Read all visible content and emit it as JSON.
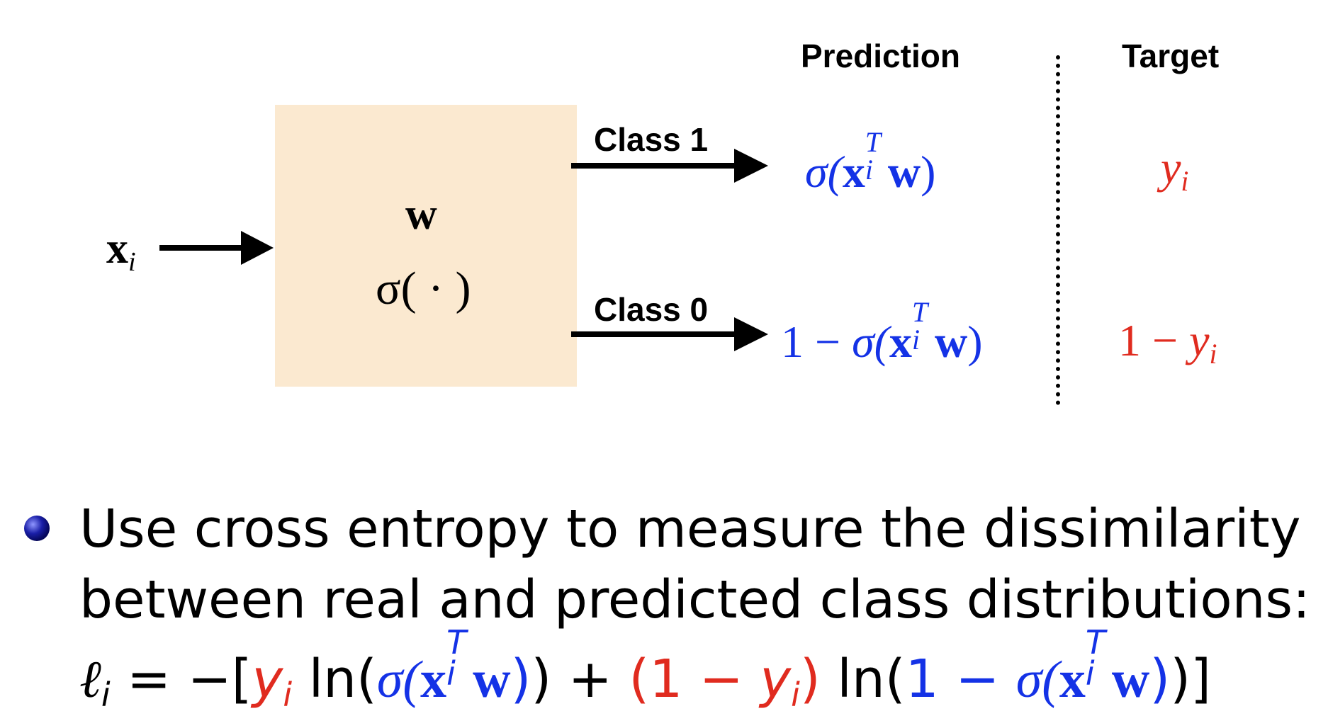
{
  "headers": {
    "prediction": "Prediction",
    "target": "Target"
  },
  "model": {
    "input_bold": "x",
    "input_sub": "i",
    "weights": "w",
    "activation": "σ( · )"
  },
  "branches": {
    "class1_label": "Class 1",
    "class0_label": "Class 0"
  },
  "predictions": {
    "class1": {
      "sigma": "σ(",
      "x": "x",
      "sub": "i",
      "sup": "T",
      "w": "w",
      "close": ")"
    },
    "class0": {
      "prefix": "1 − ",
      "sigma": "σ(",
      "x": "x",
      "sub": "i",
      "sup": "T",
      "w": "w",
      "close": ")"
    }
  },
  "targets": {
    "class1": {
      "y": "y",
      "sub": "i"
    },
    "class0": {
      "prefix": "1 − ",
      "y": "y",
      "sub": "i"
    }
  },
  "bullet": {
    "line1": "Use cross entropy to measure the dissimilarity",
    "line2": "between real and predicted class distributions:"
  },
  "formula": {
    "ell": "ℓ",
    "i": "i",
    "eq": " = −[",
    "y": "y",
    "ln": " ln(",
    "sigma": "σ(",
    "x": "x",
    "T": "T",
    "w": "w",
    "close1": ")",
    "close_ln": ")",
    "plus": " + ",
    "open_red": "(1 − ",
    "close_red": ")",
    "ln2": " ln(",
    "one_minus": "1 − ",
    "close_end": ")]"
  },
  "colors": {
    "prediction": "#1432e6",
    "target": "#e02b1f",
    "box": "#fbe9d0"
  }
}
